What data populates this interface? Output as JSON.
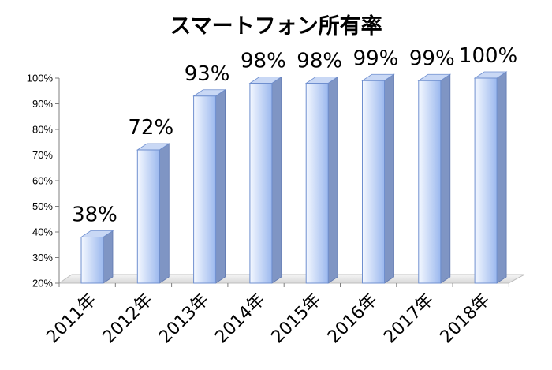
{
  "chart_data": {
    "type": "bar",
    "title": "スマートフォン所有率",
    "categories": [
      "2011年",
      "2012年",
      "2013年",
      "2014年",
      "2015年",
      "2016年",
      "2017年",
      "2018年"
    ],
    "values": [
      38,
      72,
      93,
      98,
      98,
      99,
      99,
      100
    ],
    "data_labels": [
      "38%",
      "72%",
      "93%",
      "98%",
      "98%",
      "99%",
      "99%",
      "100%"
    ],
    "y_ticks": [
      "20%",
      "30%",
      "40%",
      "50%",
      "60%",
      "70%",
      "80%",
      "90%",
      "100%"
    ],
    "ylim": [
      20,
      100
    ],
    "xlabel": "",
    "ylabel": "",
    "grid": false,
    "legend": "none",
    "style": "3d-column",
    "colors": {
      "bar_front_light": "#f4f8ff",
      "bar_front_dark": "#9bb8ee",
      "bar_side": "#7f95c4",
      "bar_top": "#c9d8f5",
      "bar_edge": "#6f8fcf",
      "floor": "#e6e6e6"
    }
  }
}
